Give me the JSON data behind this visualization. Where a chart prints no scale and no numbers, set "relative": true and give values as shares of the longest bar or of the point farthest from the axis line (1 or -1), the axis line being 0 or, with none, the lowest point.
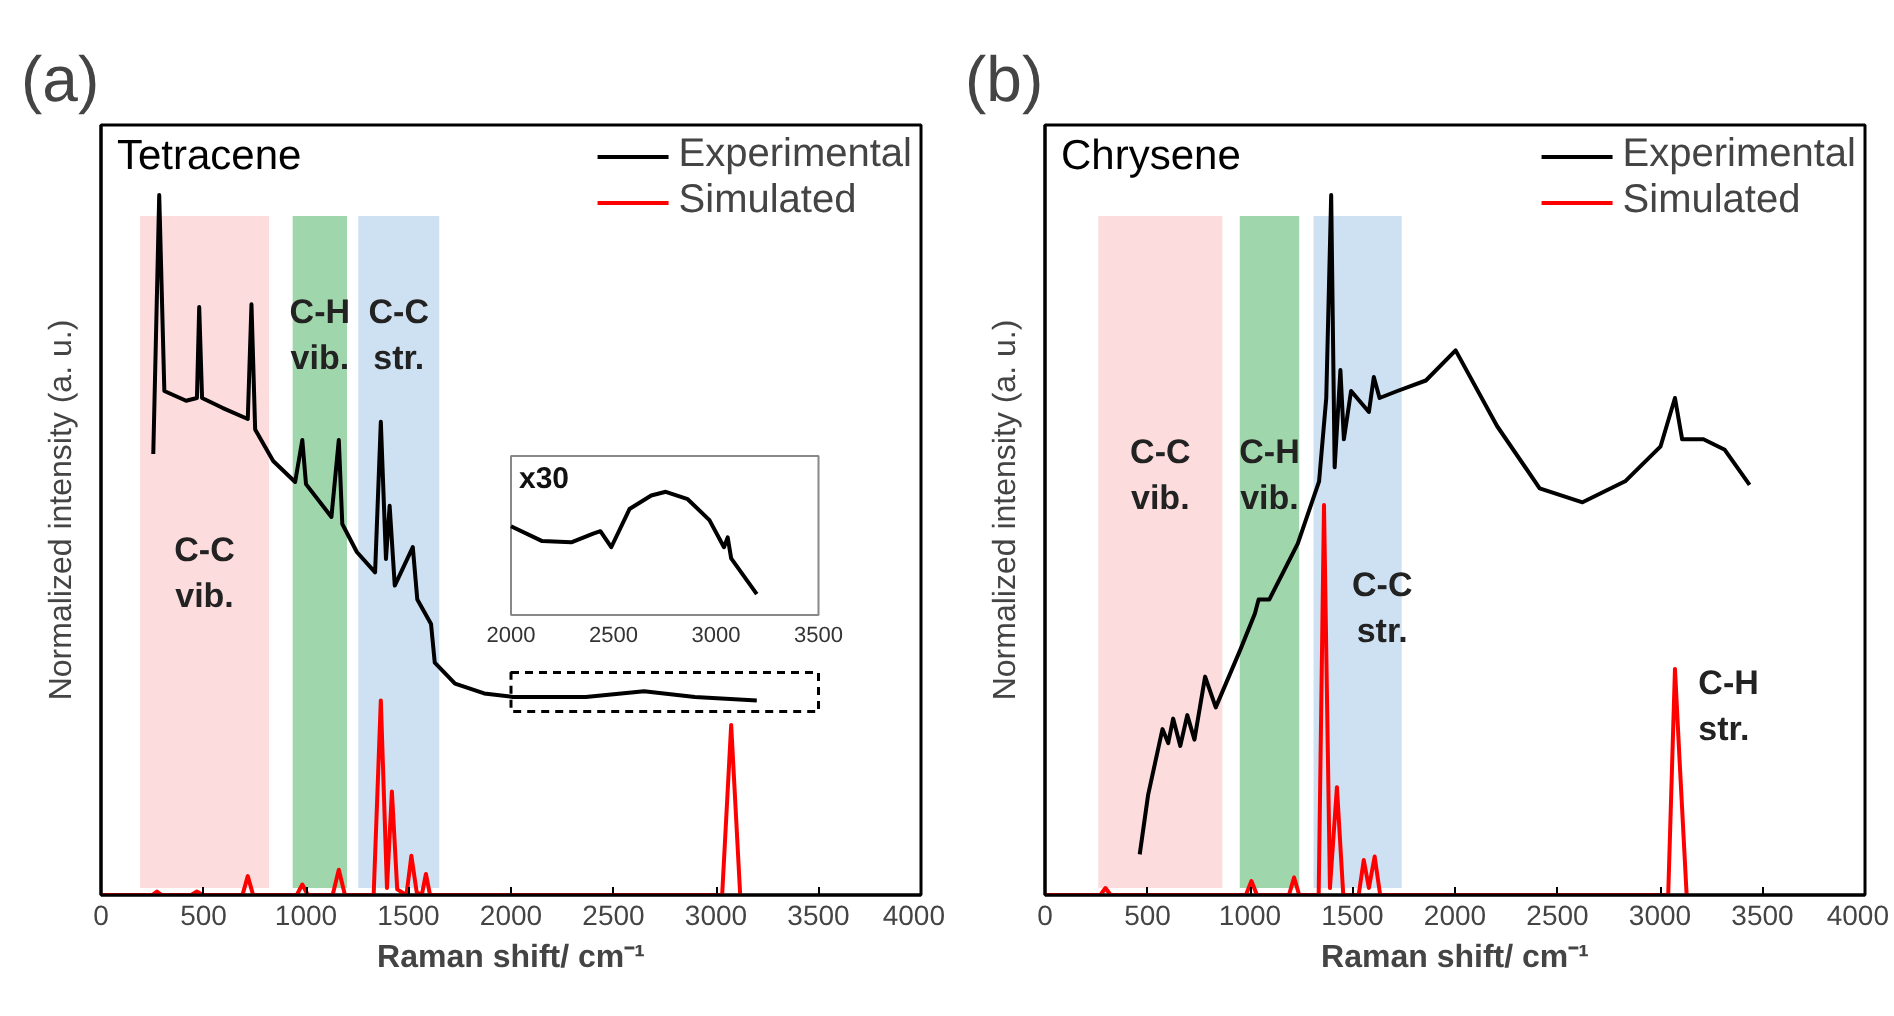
{
  "chart_data": [
    {
      "type": "line",
      "title": "(a)",
      "xlabel": "Raman shift/ cm⁻¹",
      "ylabel": "Normalized intensity (a. u.)",
      "relative": true,
      "xlim": [
        0,
        4000
      ],
      "xticks": [
        0,
        500,
        1000,
        1500,
        2000,
        2500,
        3000,
        3500,
        4000
      ],
      "legend": "top right",
      "annotations": [
        "Tetracene"
      ],
      "bands": [
        {
          "axis": "x",
          "from": 190,
          "to": 820,
          "label": "C-C vib.",
          "color": "#fcd6d6"
        },
        {
          "axis": "x",
          "from": 935,
          "to": 1200,
          "label": "C-H vib.",
          "color": "#8fcf9c"
        },
        {
          "axis": "x",
          "from": 1255,
          "to": 1650,
          "label": "C-C str.",
          "color": "#c4dcf0"
        }
      ],
      "series": [
        {
          "name": "Experimental",
          "color": "#000000",
          "x": [
            255,
            284,
            309,
            415,
            468,
            479,
            493,
            592,
            716,
            734,
            752,
            840,
            947,
            982,
            1000,
            1124,
            1160,
            1177,
            1248,
            1337,
            1365,
            1390,
            1408,
            1433,
            1521,
            1543,
            1610,
            1628,
            1727,
            1869,
            2010,
            2365,
            2649,
            2897,
            3199
          ],
          "values": [
            0.63,
            1.0,
            0.72,
            0.706,
            0.71,
            0.84,
            0.71,
            0.696,
            0.68,
            0.844,
            0.665,
            0.62,
            0.59,
            0.65,
            0.587,
            0.54,
            0.65,
            0.53,
            0.49,
            0.461,
            0.676,
            0.48,
            0.556,
            0.442,
            0.497,
            0.422,
            0.387,
            0.332,
            0.302,
            0.288,
            0.283,
            0.283,
            0.291,
            0.283,
            0.278
          ]
        },
        {
          "name": "Simulated",
          "color": "#ff0000",
          "x": [
            0,
            250,
            273,
            296,
            440,
            468,
            496,
            690,
            716,
            742,
            955,
            982,
            1009,
            1130,
            1160,
            1190,
            1330,
            1365,
            1395,
            1419,
            1445,
            1490,
            1514,
            1540,
            1565,
            1585,
            1605,
            3030,
            3074,
            3118
          ],
          "values": [
            0,
            0,
            0.005,
            0,
            0,
            0.005,
            0,
            0,
            0.027,
            0,
            0,
            0.015,
            0,
            0,
            0.036,
            0,
            0,
            0.278,
            0.01,
            0.148,
            0.008,
            0,
            0.056,
            0.004,
            0,
            0.03,
            0,
            0,
            0.243,
            0
          ]
        }
      ]
    },
    {
      "type": "line",
      "relative": true,
      "xlim": [
        2000,
        3500
      ],
      "xticks": [
        2000,
        2500,
        3000,
        3500
      ],
      "annotations": [
        "x30"
      ],
      "series": [
        {
          "color": "#000000",
          "x": [
            2000,
            2152,
            2294,
            2401,
            2436,
            2489,
            2578,
            2684,
            2755,
            2862,
            2968,
            3039,
            3057,
            3074,
            3199
          ],
          "values": [
            0.72,
            0.6,
            0.59,
            0.66,
            0.68,
            0.55,
            0.86,
            0.97,
            1.0,
            0.94,
            0.77,
            0.55,
            0.63,
            0.46,
            0.17
          ]
        }
      ]
    },
    {
      "type": "line",
      "title": "(b)",
      "xlabel": "Raman shift/ cm⁻¹",
      "ylabel": "Normalized intensity (a. u.)",
      "relative": true,
      "xlim": [
        0,
        4000
      ],
      "xticks": [
        0,
        500,
        1000,
        1500,
        2000,
        2500,
        3000,
        3500,
        4000
      ],
      "legend": "top right",
      "annotations": [
        "Chrysene",
        {
          "text": "C-H str.",
          "x": 3070,
          "y": 0.33
        }
      ],
      "bands": [
        {
          "axis": "x",
          "from": 260,
          "to": 865,
          "label": "C-C vib.",
          "color": "#fcd6d6"
        },
        {
          "axis": "x",
          "from": 950,
          "to": 1240,
          "label": "C-H vib.",
          "color": "#8fcf9c"
        },
        {
          "axis": "x",
          "from": 1310,
          "to": 1740,
          "label": "C-C str.",
          "color": "#c4dcf0"
        }
      ],
      "series": [
        {
          "name": "Experimental",
          "color": "#000000",
          "x": [
            462,
            503,
            573,
            601,
            625,
            660,
            694,
            729,
            781,
            833,
            955,
            1024,
            1042,
            1094,
            1233,
            1337,
            1372,
            1396,
            1413,
            1441,
            1458,
            1493,
            1580,
            1604,
            1632,
            1719,
            1858,
            2003,
            2205,
            2413,
            2622,
            2830,
            3003,
            3073,
            3108,
            3212,
            3316,
            3437
          ],
          "values": [
            0.058,
            0.143,
            0.237,
            0.217,
            0.252,
            0.213,
            0.257,
            0.222,
            0.312,
            0.268,
            0.352,
            0.402,
            0.422,
            0.422,
            0.502,
            0.591,
            0.71,
            1.0,
            0.611,
            0.75,
            0.651,
            0.72,
            0.69,
            0.74,
            0.71,
            0.72,
            0.735,
            0.778,
            0.67,
            0.581,
            0.561,
            0.591,
            0.641,
            0.71,
            0.651,
            0.651,
            0.636,
            0.586
          ]
        },
        {
          "name": "Simulated",
          "color": "#ff0000",
          "x": [
            0,
            270,
            295,
            320,
            980,
            1007,
            1034,
            1190,
            1215,
            1240,
            1335,
            1361,
            1390,
            1424,
            1455,
            1530,
            1555,
            1580,
            1608,
            1635,
            3040,
            3073,
            3097,
            3130
          ],
          "values": [
            0,
            0,
            0.01,
            0,
            0,
            0.02,
            0,
            0,
            0.025,
            0,
            0,
            0.557,
            0.01,
            0.154,
            0,
            0,
            0.05,
            0.01,
            0.055,
            0,
            0,
            0.323,
            0.184,
            0
          ]
        }
      ]
    }
  ]
}
